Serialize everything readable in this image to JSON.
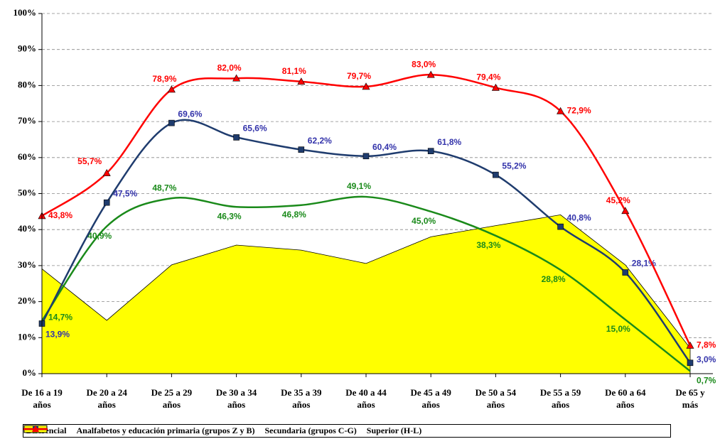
{
  "chart_data": {
    "type": "line",
    "categories": [
      "De 16 a 19\naños",
      "De 20 a 24\naños",
      "De 25 a 29\naños",
      "De 30 a 34\naños",
      "De 35 a 39\naños",
      "De 40 a 44\naños",
      "De 45 a 49\naños",
      "De 50 a 54\naños",
      "De 55 a 59\naños",
      "De 60 a 64\naños",
      "De 65 y\nmás"
    ],
    "ylim": [
      0,
      100
    ],
    "yticks": [
      {
        "value": 0,
        "label": "0%"
      },
      {
        "value": 10,
        "label": "10%"
      },
      {
        "value": 20,
        "label": "20%"
      },
      {
        "value": 30,
        "label": "30%"
      },
      {
        "value": 40,
        "label": "40%"
      },
      {
        "value": 50,
        "label": "50%"
      },
      {
        "value": 60,
        "label": "60%"
      },
      {
        "value": 70,
        "label": "70%"
      },
      {
        "value": 80,
        "label": "80%"
      },
      {
        "value": 90,
        "label": "90%"
      },
      {
        "value": 100,
        "label": "100%"
      }
    ],
    "grid": true,
    "legend": "bottom",
    "series": [
      {
        "name": "Diferencial",
        "type": "area",
        "color": "#ffff00",
        "values": [
          29.1,
          14.8,
          30.2,
          35.7,
          34.3,
          30.6,
          38.0,
          41.1,
          44.1,
          30.2,
          7.1
        ]
      },
      {
        "name": "Analfabetos y educación primaria (grupos Z y B)",
        "type": "line",
        "marker": "none",
        "color": "#1a8a1a",
        "values": [
          14.7,
          40.9,
          48.7,
          46.3,
          46.8,
          49.1,
          45.0,
          38.3,
          28.8,
          15.0,
          0.7
        ],
        "value_labels": [
          "14,7%",
          "40,9%",
          "48,7%",
          "46,3%",
          "46,8%",
          "49,1%",
          "45,0%",
          "38,3%",
          "28,8%",
          "15,0%",
          "0,7%"
        ]
      },
      {
        "name": "Secundaria (grupos C-G)",
        "type": "line",
        "marker": "square",
        "color": "#1f3c6e",
        "label_color": "#3333aa",
        "values": [
          13.9,
          47.5,
          69.6,
          65.6,
          62.2,
          60.4,
          61.8,
          55.2,
          40.8,
          28.1,
          3.0
        ],
        "value_labels": [
          "13,9%",
          "47,5%",
          "69,6%",
          "65,6%",
          "62,2%",
          "60,4%",
          "61,8%",
          "55,2%",
          "40,8%",
          "28,1%",
          "3,0%"
        ]
      },
      {
        "name": "Superior (H-L)",
        "type": "line",
        "marker": "triangle",
        "color": "#ff0000",
        "values": [
          43.8,
          55.7,
          78.9,
          82.0,
          81.1,
          79.7,
          83.0,
          79.4,
          72.9,
          45.2,
          7.8
        ],
        "value_labels": [
          "43,8%",
          "55,7%",
          "78,9%",
          "82,0%",
          "81,1%",
          "79,7%",
          "83,0%",
          "79,4%",
          "72,9%",
          "45,2%",
          "7,8%"
        ]
      }
    ]
  }
}
